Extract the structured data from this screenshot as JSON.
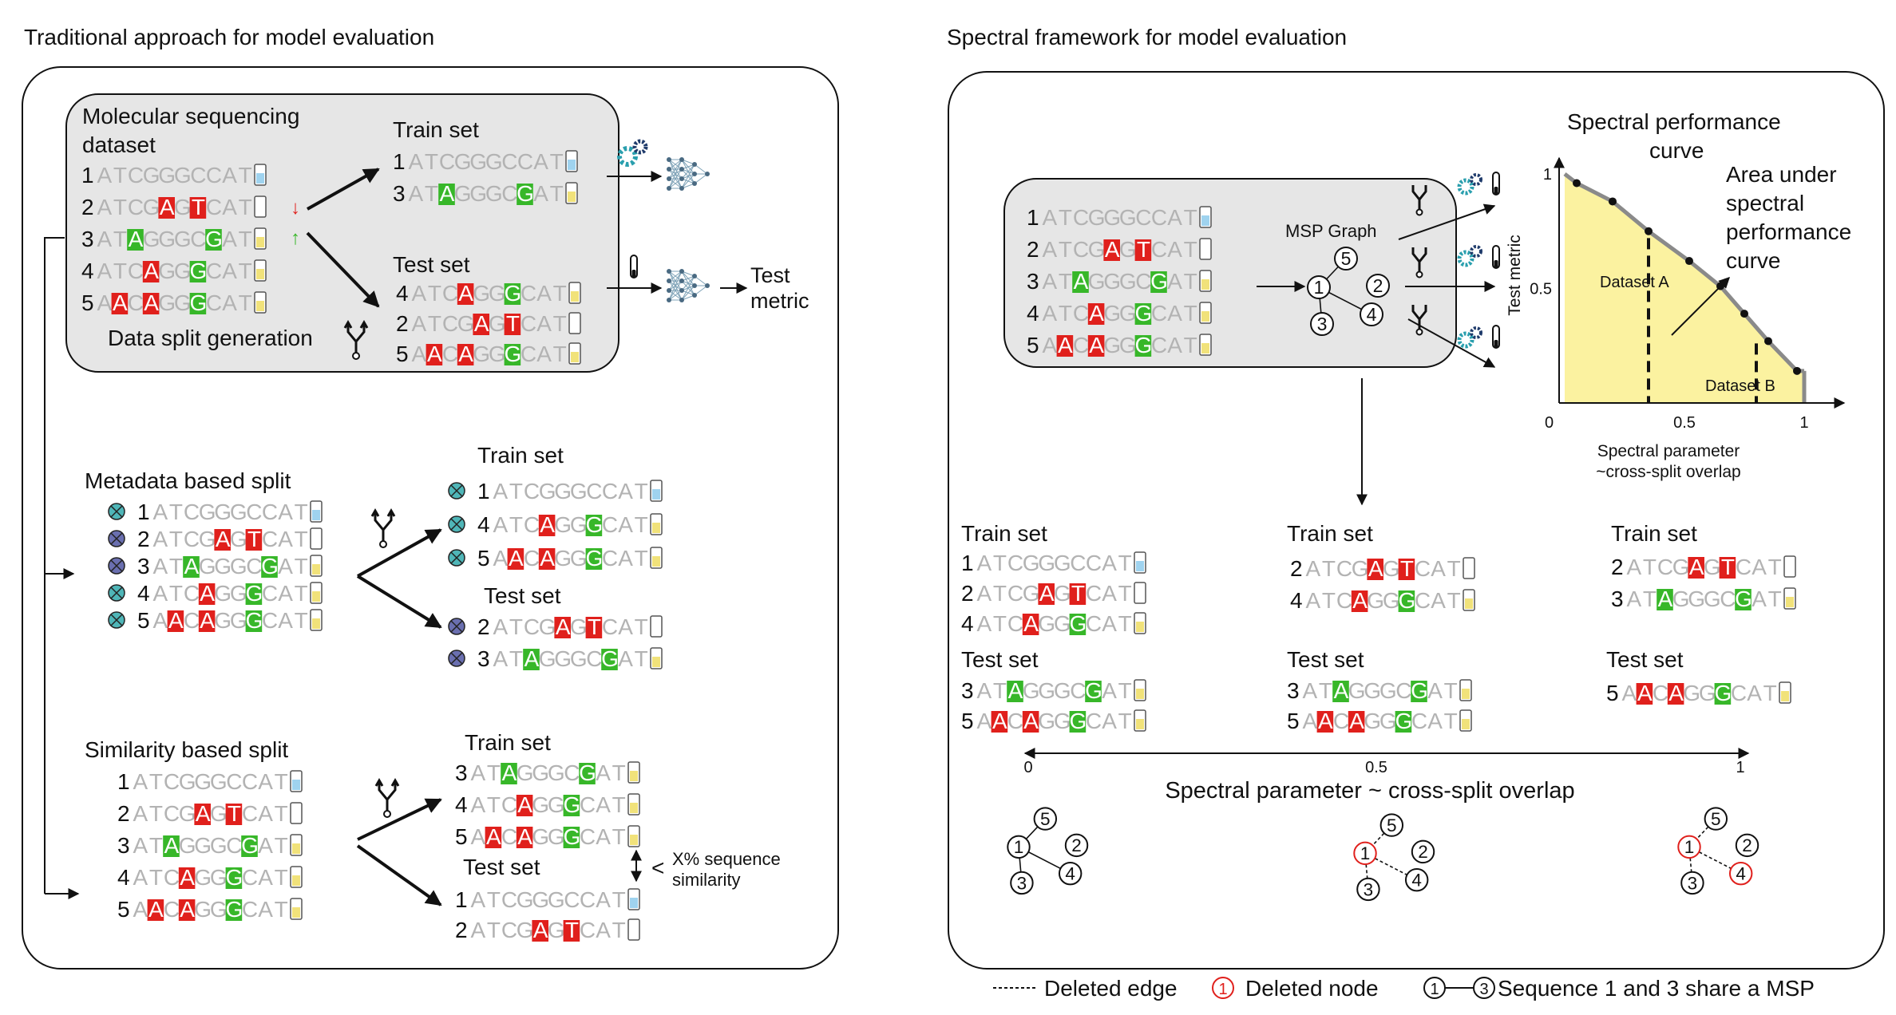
{
  "left": {
    "title": "Traditional approach for model evaluation",
    "dataset_title_1": "Molecular sequencing",
    "dataset_title_2": "dataset",
    "split_generation": "Data split generation",
    "train_set": "Train set",
    "test_set": "Test set",
    "test_metric_1": "Test",
    "test_metric_2": "metric",
    "metadata_title": "Metadata based split",
    "similarity_title": "Similarity based split",
    "similarity_note_1": "X% sequence",
    "similarity_note_2": "similarity",
    "similarity_less": "<"
  },
  "right": {
    "title": "Spectral framework for model evaluation",
    "msp_graph": "MSP Graph",
    "curve_title_1": "Spectral performance",
    "curve_title_2": "curve",
    "auc_1": "Area under",
    "auc_2": "spectral",
    "auc_3": "performance",
    "auc_4": "curve",
    "dataset_a": "Dataset A",
    "dataset_b": "Dataset B",
    "x_label_1": "Spectral parameter",
    "x_label_2": "~cross-split overlap",
    "y_label": "Test metric",
    "axis_ticks": [
      "0",
      "0.5",
      "1"
    ],
    "bottom_axis_label": "Spectral parameter ~ cross-split overlap",
    "bottom_axis_ticks": [
      "0",
      "0.5",
      "1"
    ],
    "train_set": "Train set",
    "test_set": "Test set"
  },
  "legend": {
    "deleted_edge": "Deleted edge",
    "deleted_node": "Deleted node",
    "share": "Sequence 1 and 3 share a MSP",
    "node_1": "1",
    "node_3": "3"
  },
  "sequences": {
    "1": "ATCGGGCCAT",
    "2": "ATCGAGTCAT",
    "3": "ATAGGGCGAT",
    "4": "ATCAGGGCAT",
    "5": "AACAGGGCAT"
  },
  "chart_data": {
    "type": "area",
    "title": "Spectral performance curve",
    "xlabel": "Spectral parameter ~cross-split overlap",
    "ylabel": "Test metric",
    "x_ticks": [
      "0",
      "0.5",
      "1"
    ],
    "y_ticks": [
      "0.5",
      "1"
    ],
    "xlim": [
      0,
      1
    ],
    "ylim": [
      0,
      1
    ],
    "x": [
      0.05,
      0.2,
      0.35,
      0.52,
      0.65,
      0.75,
      0.85,
      0.97
    ],
    "y": [
      0.96,
      0.88,
      0.75,
      0.62,
      0.51,
      0.39,
      0.27,
      0.14
    ],
    "annotations": [
      "Dataset A",
      "Dataset B",
      "Area under spectral performance curve"
    ],
    "markers": [
      {
        "label": "Dataset A",
        "x": 0.35
      },
      {
        "label": "Dataset B",
        "x": 0.8
      }
    ]
  },
  "colors": {
    "red": "#e0201c",
    "green": "#37b729",
    "seq_gray": "#b3b3b3",
    "panel_fill": "#e6e6e6",
    "curve_fill": "#fbf2a0",
    "node_red": "#e0201c"
  }
}
